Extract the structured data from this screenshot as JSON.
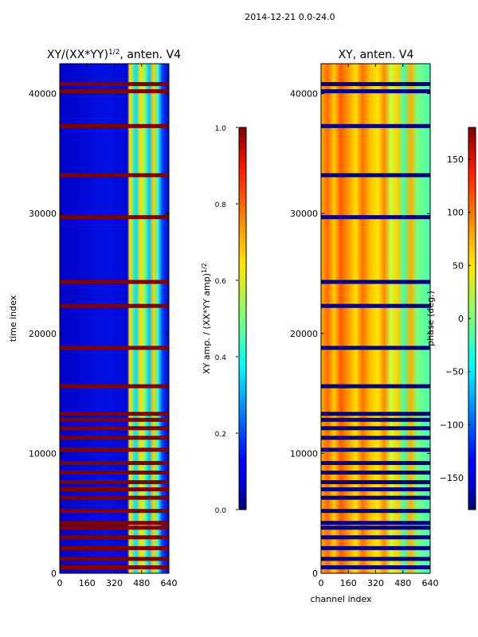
{
  "figure_title": "2014-12-21 0.0-24.0",
  "chart_data": [
    {
      "type": "heatmap",
      "title": "XY/(XX*YY)",
      "title_sup": "1/2",
      "title_suffix": ", anten. V4",
      "xlabel": "",
      "ylabel": "time index",
      "xlim": [
        0,
        640
      ],
      "ylim": [
        0,
        42500
      ],
      "x_ticks": [
        0,
        160,
        320,
        480,
        640
      ],
      "y_ticks": [
        0,
        10000,
        20000,
        30000,
        40000
      ],
      "colorbar": {
        "label": "XY amp. / (XX*YY amp)",
        "label_sup": "1/2",
        "range": [
          0.0,
          1.0
        ],
        "ticks": [
          "0.0",
          "0.2",
          "0.4",
          "0.6",
          "0.8",
          "1.0"
        ],
        "tick_values": [
          0.0,
          0.2,
          0.4,
          0.6,
          0.8,
          1.0
        ]
      },
      "colormap": "jet",
      "dominant_value": 0.1,
      "high_channel_band": [
        420,
        620
      ],
      "high_channel_value": 0.65,
      "flagged_rows_value": 1.0,
      "flagged_time_rows": [
        500,
        1200,
        2100,
        3000,
        3800,
        4200,
        5200,
        6300,
        7000,
        7600,
        8400,
        9200,
        10300,
        11300,
        12100,
        12800,
        13300,
        15600,
        18800,
        22300,
        24300,
        29700,
        33200,
        37300,
        40200,
        40800
      ]
    },
    {
      "type": "heatmap",
      "title": "XY, anten. V4",
      "xlabel": "channel index",
      "ylabel": "",
      "xlim": [
        0,
        640
      ],
      "ylim": [
        0,
        42500
      ],
      "x_ticks": [
        0,
        160,
        320,
        480,
        640
      ],
      "y_ticks": [
        0,
        10000,
        20000,
        30000,
        40000
      ],
      "colorbar": {
        "label": "phase (deg.)",
        "range": [
          -180,
          180
        ],
        "ticks": [
          "−150",
          "−100",
          "−50",
          "0",
          "50",
          "100",
          "150"
        ],
        "tick_values": [
          -150,
          -100,
          -50,
          0,
          50,
          100,
          150
        ]
      },
      "colormap": "jet",
      "dominant_value": 110,
      "flagged_rows_value": -180,
      "flagged_time_rows": [
        500,
        1200,
        2100,
        3000,
        3800,
        4200,
        5200,
        6300,
        7000,
        7600,
        8400,
        9200,
        10300,
        11300,
        12100,
        12800,
        13300,
        15600,
        18800,
        22300,
        24300,
        29700,
        33200,
        37300,
        40200,
        40800
      ]
    }
  ]
}
